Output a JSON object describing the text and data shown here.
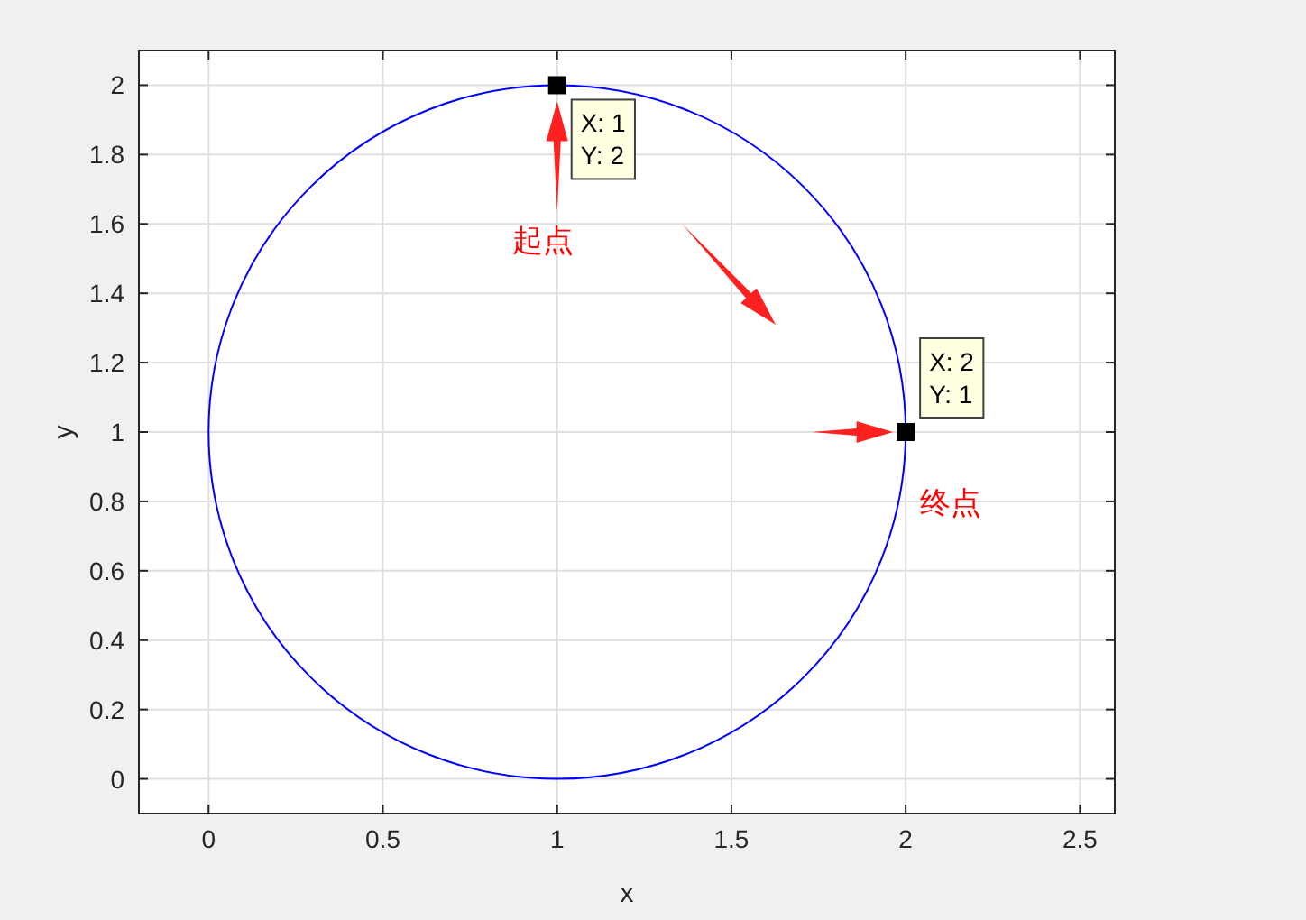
{
  "chart_data": {
    "type": "scatter",
    "xlabel": "x",
    "ylabel": "y",
    "xlim": [
      -0.2,
      2.6
    ],
    "ylim": [
      -0.1,
      2.1
    ],
    "xticks": [
      0,
      0.5,
      1,
      1.5,
      2,
      2.5
    ],
    "yticks": [
      0,
      0.2,
      0.4,
      0.6,
      0.8,
      1,
      1.2,
      1.4,
      1.6,
      1.8,
      2
    ],
    "grid": true,
    "series": [
      {
        "color": "#000000",
        "marker": "square",
        "x": [
          1,
          2
        ],
        "values": [
          2,
          1
        ],
        "value_labels": [
          "X: 1\nY: 2",
          "X: 2\nY: 1"
        ]
      }
    ],
    "annotations": [
      "起点",
      "终点"
    ]
  }
}
